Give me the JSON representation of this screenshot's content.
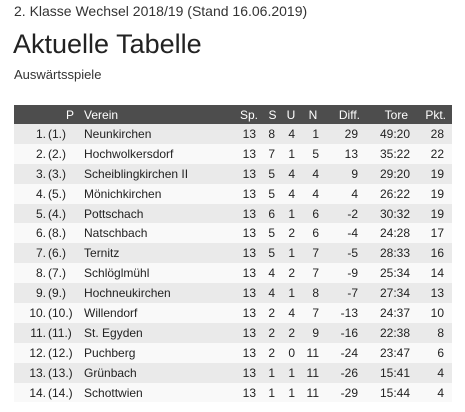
{
  "header": {
    "league": "2. Klasse Wechsel 2018/19 (Stand 16.06.2019)",
    "title": "Aktuelle Tabelle",
    "subtitle": "Auswärtsspiele"
  },
  "table": {
    "columns": {
      "pos": "P",
      "team": "Verein",
      "played": "Sp.",
      "won": "S",
      "draw": "U",
      "lost": "N",
      "diff": "Diff.",
      "goals": "Tore",
      "points": "Pkt."
    },
    "rows": [
      {
        "pos": "1.",
        "prev": "(1.)",
        "team": "Neunkirchen",
        "played": "13",
        "won": "8",
        "draw": "4",
        "lost": "1",
        "diff": "29",
        "goals": "49:20",
        "points": "28"
      },
      {
        "pos": "2.",
        "prev": "(2.)",
        "team": "Hochwolkersdorf",
        "played": "13",
        "won": "7",
        "draw": "1",
        "lost": "5",
        "diff": "13",
        "goals": "35:22",
        "points": "22"
      },
      {
        "pos": "3.",
        "prev": "(3.)",
        "team": "Scheiblingkirchen II",
        "played": "13",
        "won": "5",
        "draw": "4",
        "lost": "4",
        "diff": "9",
        "goals": "29:20",
        "points": "19"
      },
      {
        "pos": "4.",
        "prev": "(5.)",
        "team": "Mönichkirchen",
        "played": "13",
        "won": "5",
        "draw": "4",
        "lost": "4",
        "diff": "4",
        "goals": "26:22",
        "points": "19"
      },
      {
        "pos": "5.",
        "prev": "(4.)",
        "team": "Pottschach",
        "played": "13",
        "won": "6",
        "draw": "1",
        "lost": "6",
        "diff": "-2",
        "goals": "30:32",
        "points": "19"
      },
      {
        "pos": "6.",
        "prev": "(8.)",
        "team": "Natschbach",
        "played": "13",
        "won": "5",
        "draw": "2",
        "lost": "6",
        "diff": "-4",
        "goals": "24:28",
        "points": "17"
      },
      {
        "pos": "7.",
        "prev": "(6.)",
        "team": "Ternitz",
        "played": "13",
        "won": "5",
        "draw": "1",
        "lost": "7",
        "diff": "-5",
        "goals": "28:33",
        "points": "16"
      },
      {
        "pos": "8.",
        "prev": "(7.)",
        "team": "Schlöglmühl",
        "played": "13",
        "won": "4",
        "draw": "2",
        "lost": "7",
        "diff": "-9",
        "goals": "25:34",
        "points": "14"
      },
      {
        "pos": "9.",
        "prev": "(9.)",
        "team": "Hochneukirchen",
        "played": "13",
        "won": "4",
        "draw": "1",
        "lost": "8",
        "diff": "-7",
        "goals": "27:34",
        "points": "13"
      },
      {
        "pos": "10.",
        "prev": "(10.)",
        "team": "Willendorf",
        "played": "13",
        "won": "2",
        "draw": "4",
        "lost": "7",
        "diff": "-13",
        "goals": "24:37",
        "points": "10"
      },
      {
        "pos": "11.",
        "prev": "(11.)",
        "team": "St. Egyden",
        "played": "13",
        "won": "2",
        "draw": "2",
        "lost": "9",
        "diff": "-16",
        "goals": "22:38",
        "points": "8"
      },
      {
        "pos": "12.",
        "prev": "(12.)",
        "team": "Puchberg",
        "played": "13",
        "won": "2",
        "draw": "0",
        "lost": "11",
        "diff": "-24",
        "goals": "23:47",
        "points": "6"
      },
      {
        "pos": "13.",
        "prev": "(13.)",
        "team": "Grünbach",
        "played": "13",
        "won": "1",
        "draw": "1",
        "lost": "11",
        "diff": "-26",
        "goals": "15:41",
        "points": "4"
      },
      {
        "pos": "14.",
        "prev": "(14.)",
        "team": "Schottwien",
        "played": "13",
        "won": "1",
        "draw": "1",
        "lost": "11",
        "diff": "-29",
        "goals": "15:44",
        "points": "4"
      }
    ]
  },
  "colors": {
    "header_bg": "#4d4d4d",
    "row_odd": "#eaeaea",
    "row_even": "#f9f9f9"
  }
}
